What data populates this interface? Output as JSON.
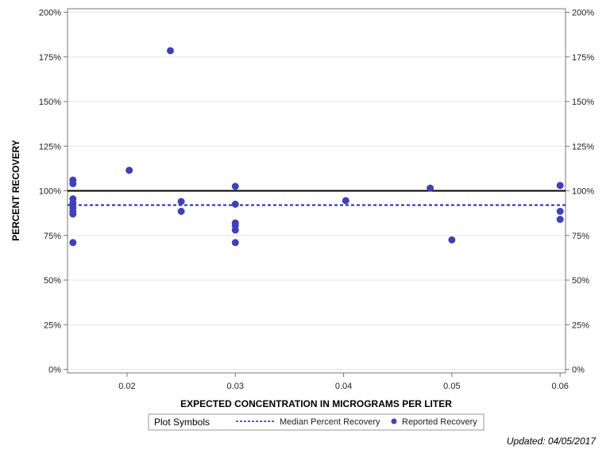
{
  "chart_data": {
    "type": "scatter",
    "xlabel": "EXPECTED CONCENTRATION IN MICROGRAMS PER LITER",
    "ylabel": "PERCENT RECOVERY",
    "xlim": [
      0.0145,
      0.0605
    ],
    "ylim": [
      -2,
      202
    ],
    "x_ticks": [
      0.02,
      0.03,
      0.04,
      0.05,
      0.06
    ],
    "x_tick_labels": [
      "0.02",
      "0.03",
      "0.04",
      "0.05",
      "0.06"
    ],
    "y_ticks": [
      0,
      25,
      50,
      75,
      100,
      125,
      150,
      175,
      200
    ],
    "y_tick_labels": [
      "0%",
      "25%",
      "50%",
      "75%",
      "100%",
      "125%",
      "150%",
      "175%",
      "200%"
    ],
    "grid": "horizontal",
    "reference_line": {
      "y": 100,
      "color": "#000000"
    },
    "median_line": {
      "name": "Median Percent Recovery",
      "y": 92,
      "color": "#2020e0",
      "style": "dashed"
    },
    "series": [
      {
        "name": "Reported Recovery",
        "color": "#4040b8",
        "points": [
          {
            "x": 0.015,
            "y": 106
          },
          {
            "x": 0.015,
            "y": 104
          },
          {
            "x": 0.015,
            "y": 95.5
          },
          {
            "x": 0.015,
            "y": 93
          },
          {
            "x": 0.015,
            "y": 90.5
          },
          {
            "x": 0.015,
            "y": 88.5
          },
          {
            "x": 0.015,
            "y": 87
          },
          {
            "x": 0.015,
            "y": 71
          },
          {
            "x": 0.0202,
            "y": 111.5
          },
          {
            "x": 0.024,
            "y": 178.5
          },
          {
            "x": 0.025,
            "y": 94
          },
          {
            "x": 0.025,
            "y": 88.5
          },
          {
            "x": 0.03,
            "y": 102.5
          },
          {
            "x": 0.03,
            "y": 92.5
          },
          {
            "x": 0.03,
            "y": 82
          },
          {
            "x": 0.03,
            "y": 80.5
          },
          {
            "x": 0.03,
            "y": 78
          },
          {
            "x": 0.03,
            "y": 71
          },
          {
            "x": 0.0402,
            "y": 94.5
          },
          {
            "x": 0.048,
            "y": 101.5
          },
          {
            "x": 0.05,
            "y": 72.5
          },
          {
            "x": 0.06,
            "y": 103
          },
          {
            "x": 0.06,
            "y": 88.5
          },
          {
            "x": 0.06,
            "y": 84
          }
        ]
      }
    ],
    "legend": {
      "title": "Plot Symbols",
      "placement": "bottom-center",
      "entries": [
        "Median Percent Recovery",
        "Reported Recovery"
      ]
    }
  },
  "footer": {
    "updated": "Updated: 04/05/2017"
  }
}
